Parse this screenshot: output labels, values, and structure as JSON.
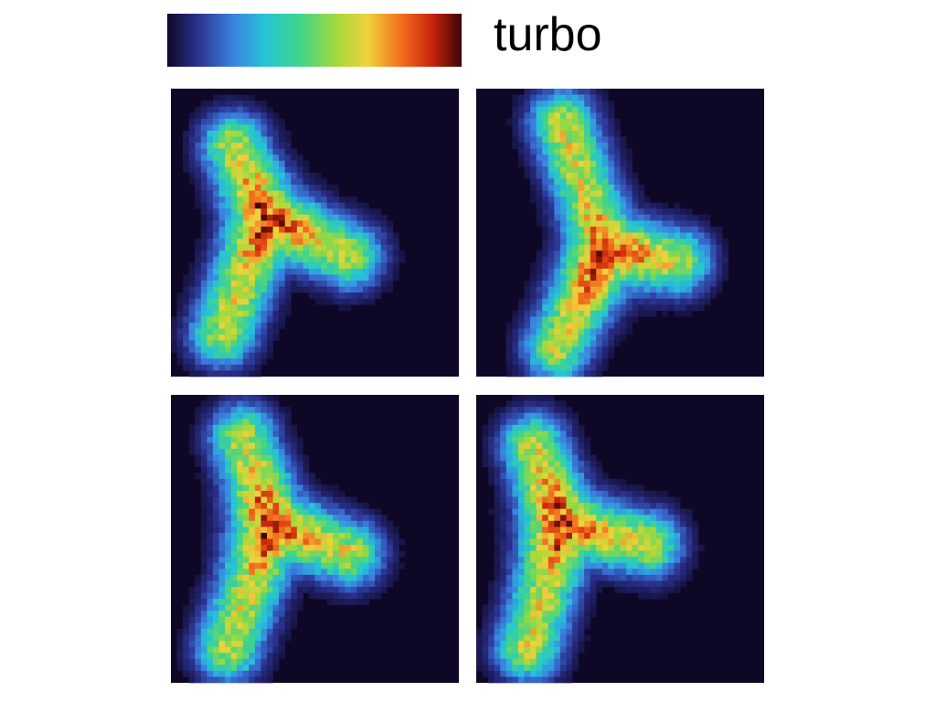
{
  "colorbar": {
    "label": "turbo"
  }
}
